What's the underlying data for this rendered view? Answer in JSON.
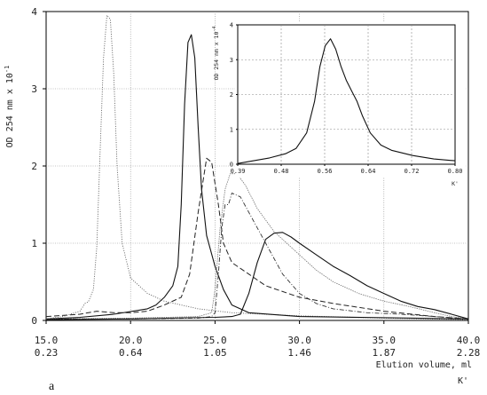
{
  "chart_data": [
    {
      "type": "line",
      "panel_label": "a",
      "ylabel": "OD 254 nm x 10",
      "ylabel_exp": "-1",
      "xlabel": "Elution volume, ml",
      "xlabel2": "K'",
      "xlim": [
        15,
        40
      ],
      "ylim": [
        0,
        4
      ],
      "x_ticks": [
        "15.0",
        "20.0",
        "25.0",
        "30.0",
        "35.0",
        "40.0"
      ],
      "x_ticks_k": [
        "0.23",
        "0.64",
        "1.05",
        "1.46",
        "1.87",
        "2.28"
      ],
      "y_ticks": [
        "0",
        "1",
        "2",
        "3",
        "4"
      ],
      "grid": true,
      "series": [
        {
          "style": "dotted",
          "x": [
            15.0,
            16.0,
            17.0,
            17.3,
            17.5,
            17.8,
            18.0,
            18.2,
            18.4,
            18.6,
            18.8,
            19.0,
            19.2,
            19.5,
            20.0,
            21.0,
            22.0,
            24.0,
            26.0,
            30.0,
            35.0,
            40.0
          ],
          "y": [
            0.02,
            0.05,
            0.12,
            0.22,
            0.24,
            0.4,
            0.95,
            2.2,
            3.4,
            3.95,
            3.9,
            3.2,
            2.0,
            1.0,
            0.55,
            0.35,
            0.25,
            0.15,
            0.1,
            0.06,
            0.03,
            0.01
          ]
        },
        {
          "style": "solid",
          "x": [
            15.0,
            17.0,
            19.0,
            21.0,
            21.5,
            22.0,
            22.5,
            22.8,
            23.0,
            23.2,
            23.4,
            23.6,
            23.8,
            24.0,
            24.2,
            24.5,
            25.0,
            25.5,
            26.0,
            27.0,
            30.0,
            40.0
          ],
          "y": [
            0.02,
            0.04,
            0.08,
            0.15,
            0.2,
            0.3,
            0.45,
            0.7,
            1.5,
            2.8,
            3.6,
            3.7,
            3.4,
            2.5,
            1.7,
            1.1,
            0.7,
            0.4,
            0.2,
            0.1,
            0.05,
            0.02
          ]
        },
        {
          "style": "dash",
          "x": [
            15.0,
            17.0,
            18.0,
            19.0,
            20.0,
            21.0,
            22.0,
            23.0,
            23.5,
            24.0,
            24.5,
            24.8,
            25.2,
            25.5,
            26.0,
            27.0,
            28.0,
            30.0,
            32.0,
            35.0,
            38.0,
            40.0
          ],
          "y": [
            0.05,
            0.08,
            0.12,
            0.1,
            0.1,
            0.12,
            0.2,
            0.3,
            0.6,
            1.4,
            2.1,
            2.05,
            1.5,
            1.0,
            0.75,
            0.6,
            0.45,
            0.3,
            0.22,
            0.12,
            0.05,
            0.02
          ]
        },
        {
          "style": "dashdot",
          "x": [
            15.0,
            20.0,
            24.0,
            24.8,
            25.0,
            25.2,
            25.4,
            25.6,
            25.8,
            26.0,
            26.5,
            27.0,
            28.0,
            29.0,
            30.0,
            31.0,
            32.0,
            34.0,
            36.0,
            38.0,
            40.0
          ],
          "y": [
            0.02,
            0.02,
            0.03,
            0.05,
            0.1,
            0.6,
            1.2,
            1.5,
            1.5,
            1.65,
            1.6,
            1.4,
            1.0,
            0.6,
            0.35,
            0.22,
            0.15,
            0.1,
            0.08,
            0.05,
            0.02
          ]
        },
        {
          "style": "solid-light",
          "x": [
            15.0,
            20.0,
            24.0,
            24.8,
            25.0,
            25.3,
            25.6,
            25.9,
            26.3,
            26.8,
            27.5,
            28.5,
            30.0,
            31.0,
            32.0,
            33.5,
            35.0,
            36.5,
            38.0,
            39.0,
            40.0
          ],
          "y": [
            0.02,
            0.03,
            0.05,
            0.1,
            0.4,
            1.2,
            1.7,
            1.9,
            1.9,
            1.75,
            1.45,
            1.15,
            0.85,
            0.65,
            0.5,
            0.35,
            0.25,
            0.18,
            0.1,
            0.05,
            0.02
          ]
        },
        {
          "style": "solid",
          "x": [
            15.0,
            20.0,
            25.0,
            26.0,
            26.5,
            27.0,
            27.5,
            28.0,
            28.5,
            29.0,
            29.5,
            30.0,
            31.0,
            32.0,
            33.0,
            34.0,
            35.0,
            36.0,
            37.0,
            38.0,
            39.0,
            40.0
          ],
          "y": [
            0.01,
            0.02,
            0.04,
            0.05,
            0.08,
            0.35,
            0.75,
            1.05,
            1.13,
            1.14,
            1.08,
            1.0,
            0.85,
            0.7,
            0.58,
            0.45,
            0.35,
            0.25,
            0.18,
            0.14,
            0.08,
            0.02
          ]
        }
      ]
    },
    {
      "type": "line",
      "ylabel": "OD 254 nm x 10",
      "ylabel_exp": "-4",
      "xlabel": "K'",
      "xlim": [
        0.39,
        0.8
      ],
      "ylim": [
        0,
        4
      ],
      "x_ticks": [
        "0.39",
        "0.48",
        "0.56",
        "0.64",
        "0.72",
        "0.80"
      ],
      "y_ticks": [
        "0",
        "1",
        "2",
        "3",
        "4"
      ],
      "grid": true,
      "series": [
        {
          "style": "solid",
          "x": [
            0.39,
            0.42,
            0.45,
            0.48,
            0.5,
            0.52,
            0.535,
            0.545,
            0.555,
            0.565,
            0.575,
            0.585,
            0.595,
            0.605,
            0.615,
            0.625,
            0.64,
            0.66,
            0.68,
            0.72,
            0.76,
            0.8
          ],
          "y": [
            0.02,
            0.1,
            0.18,
            0.3,
            0.45,
            0.9,
            1.8,
            2.8,
            3.4,
            3.6,
            3.3,
            2.8,
            2.4,
            2.1,
            1.8,
            1.4,
            0.9,
            0.55,
            0.4,
            0.25,
            0.15,
            0.1
          ]
        }
      ]
    }
  ]
}
